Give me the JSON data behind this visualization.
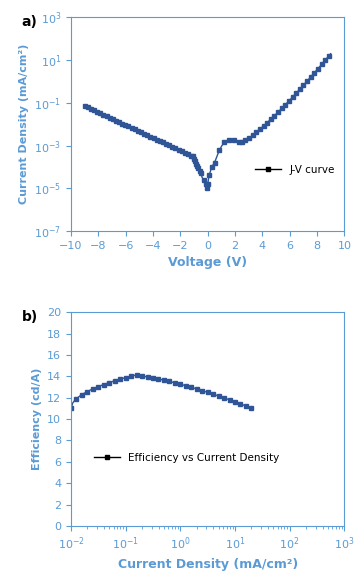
{
  "panel_a_label": "a)",
  "panel_b_label": "b)",
  "jv_xlabel": "Voltage (V)",
  "jv_ylabel": "Current Density (mA/cm²)",
  "jv_legend": "J-V curve",
  "jv_xlim": [
    -10,
    10
  ],
  "jv_xticks": [
    -10,
    -8,
    -6,
    -4,
    -2,
    0,
    2,
    4,
    6,
    8,
    10
  ],
  "eff_xlabel": "Current Density (mA/cm²)",
  "eff_ylabel": "Efficiency (cd/A)",
  "eff_legend": "Efficiency vs Current Density",
  "eff_ylim": [
    0,
    20
  ],
  "eff_yticks": [
    0,
    2,
    4,
    6,
    8,
    10,
    12,
    14,
    16,
    18,
    20
  ],
  "line_color": "#2f5597",
  "axis_label_color": "#5b9bd5",
  "tick_label_color": "#5b9bd5",
  "marker": "s",
  "markersize": 2.5,
  "linewidth": 1.0
}
